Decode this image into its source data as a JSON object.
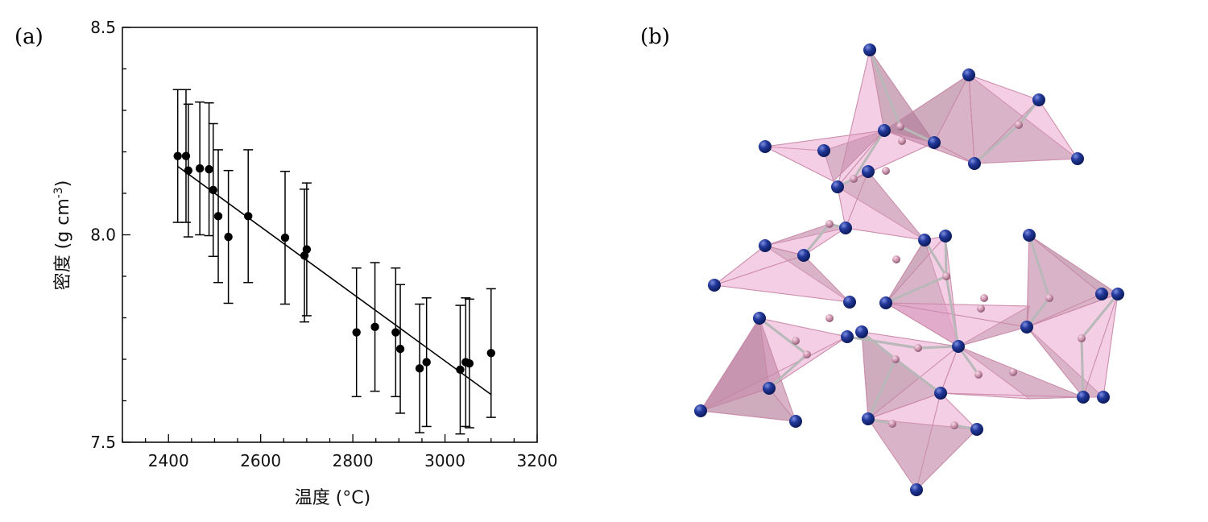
{
  "panels": {
    "a_label": "(a)",
    "b_label": "(b)"
  },
  "chart_data": {
    "type": "scatter",
    "xlabel": "温度 (°C)",
    "ylabel_main": "密度 (g cm",
    "ylabel_sup": "-3",
    "ylabel_close": ")",
    "xlim": [
      2300,
      3200
    ],
    "ylim": [
      7.5,
      8.5
    ],
    "xticks": [
      2400,
      2600,
      2800,
      3000,
      3200
    ],
    "xtick_labels": [
      "2400",
      "2600",
      "2800",
      "3000",
      "3200"
    ],
    "yticks": [
      7.5,
      8.0,
      8.5
    ],
    "ytick_labels": [
      "7.5",
      "8.0",
      "8.5"
    ],
    "grid": false,
    "series": [
      {
        "points": [
          {
            "x": 2420,
            "y": 8.19,
            "err": 0.16
          },
          {
            "x": 2438,
            "y": 8.19,
            "err": 0.16
          },
          {
            "x": 2443,
            "y": 8.155,
            "err": 0.16
          },
          {
            "x": 2468,
            "y": 8.16,
            "err": 0.16
          },
          {
            "x": 2488,
            "y": 8.158,
            "err": 0.16
          },
          {
            "x": 2497,
            "y": 8.108,
            "err": 0.16
          },
          {
            "x": 2508,
            "y": 8.045,
            "err": 0.16
          },
          {
            "x": 2530,
            "y": 7.995,
            "err": 0.16
          },
          {
            "x": 2573,
            "y": 8.045,
            "err": 0.16
          },
          {
            "x": 2653,
            "y": 7.993,
            "err": 0.16
          },
          {
            "x": 2695,
            "y": 7.95,
            "err": 0.16
          },
          {
            "x": 2700,
            "y": 7.965,
            "err": 0.16
          },
          {
            "x": 2808,
            "y": 7.765,
            "err": 0.155
          },
          {
            "x": 2848,
            "y": 7.778,
            "err": 0.155
          },
          {
            "x": 2893,
            "y": 7.765,
            "err": 0.155
          },
          {
            "x": 2903,
            "y": 7.725,
            "err": 0.155
          },
          {
            "x": 2945,
            "y": 7.678,
            "err": 0.155
          },
          {
            "x": 2960,
            "y": 7.693,
            "err": 0.155
          },
          {
            "x": 3033,
            "y": 7.675,
            "err": 0.155
          },
          {
            "x": 3045,
            "y": 7.693,
            "err": 0.155
          },
          {
            "x": 3053,
            "y": 7.69,
            "err": 0.155
          },
          {
            "x": 3100,
            "y": 7.715,
            "err": 0.155
          }
        ]
      }
    ],
    "fit_line": {
      "x": [
        2420,
        3100
      ],
      "y": [
        8.165,
        7.615
      ]
    }
  },
  "structure": {
    "colors": {
      "face": "#e8a6cc",
      "face_dark": "#9c6a83",
      "edge": "#c98aa8",
      "bond": "#b8b8b8",
      "anion": "#1a2f8c",
      "cation": "#d7a3bd"
    },
    "tetrahedra": [
      {
        "c": [
          1118,
          157
        ],
        "v": [
          [
            1080,
            62
          ],
          [
            1040,
            232
          ],
          [
            1160,
            177
          ],
          [
            1098,
            162
          ]
        ]
      },
      {
        "c": [
          1000,
          262
        ],
        "v": [
          [
            1023,
            187
          ],
          [
            950,
            182
          ],
          [
            1035,
            225
          ],
          [
            1098,
            162
          ]
        ]
      },
      {
        "c": [
          1120,
          175
        ],
        "v": [
          [
            1203,
            93
          ],
          [
            1160,
            177
          ],
          [
            1098,
            162
          ],
          [
            1210,
            203
          ]
        ]
      },
      {
        "c": [
          1260,
          155
        ],
        "v": [
          [
            1203,
            93
          ],
          [
            1290,
            124
          ],
          [
            1338,
            197
          ],
          [
            1210,
            203
          ]
        ]
      },
      {
        "c": [
          1088,
          262
        ],
        "v": [
          [
            1040,
            232
          ],
          [
            1050,
            283
          ],
          [
            1148,
            298
          ],
          [
            1078,
            213
          ]
        ]
      },
      {
        "c": [
          1000,
          300
        ],
        "v": [
          [
            950,
            305
          ],
          [
            998,
            317
          ],
          [
            1050,
            283
          ],
          [
            1030,
            278
          ]
        ]
      },
      {
        "c": [
          970,
          345
        ],
        "v": [
          [
            950,
            305
          ],
          [
            887,
            354
          ],
          [
            1055,
            375
          ],
          [
            998,
            317
          ]
        ]
      },
      {
        "c": [
          1160,
          330
        ],
        "v": [
          [
            1148,
            298
          ],
          [
            1174,
            293
          ],
          [
            1100,
            376
          ],
          [
            1190,
            430
          ]
        ]
      },
      {
        "c": [
          1320,
          355
        ],
        "v": [
          [
            1278,
            292
          ],
          [
            1368,
            365
          ],
          [
            1388,
            365
          ],
          [
            1275,
            406
          ]
        ]
      },
      {
        "c": [
          1350,
          420
        ],
        "v": [
          [
            1275,
            406
          ],
          [
            1388,
            365
          ],
          [
            1370,
            493
          ],
          [
            1345,
            493
          ]
        ]
      },
      {
        "c": [
          960,
          445
        ],
        "v": [
          [
            943,
            395
          ],
          [
            1052,
            418
          ],
          [
            870,
            510
          ],
          [
            955,
            482
          ]
        ]
      },
      {
        "c": [
          940,
          480
        ],
        "v": [
          [
            870,
            510
          ],
          [
            955,
            482
          ],
          [
            988,
            523
          ],
          [
            943,
            395
          ]
        ]
      },
      {
        "c": [
          1115,
          460
        ],
        "v": [
          [
            1070,
            412
          ],
          [
            1190,
            430
          ],
          [
            1078,
            520
          ],
          [
            1168,
            488
          ]
        ]
      },
      {
        "c": [
          1220,
          430
        ],
        "v": [
          [
            1190,
            430
          ],
          [
            1100,
            376
          ],
          [
            1278,
            380
          ],
          [
            1275,
            406
          ]
        ]
      },
      {
        "c": [
          1240,
          480
        ],
        "v": [
          [
            1190,
            430
          ],
          [
            1168,
            488
          ],
          [
            1278,
            495
          ],
          [
            1345,
            493
          ]
        ]
      },
      {
        "c": [
          1130,
          545
        ],
        "v": [
          [
            1078,
            520
          ],
          [
            1168,
            488
          ],
          [
            1213,
            533
          ],
          [
            1138,
            608
          ]
        ]
      }
    ],
    "anions": [
      [
        1080,
        62
      ],
      [
        1203,
        93
      ],
      [
        1290,
        124
      ],
      [
        950,
        182
      ],
      [
        1023,
        187
      ],
      [
        1098,
        162
      ],
      [
        1160,
        177
      ],
      [
        1210,
        203
      ],
      [
        1338,
        197
      ],
      [
        1040,
        232
      ],
      [
        1078,
        213
      ],
      [
        1050,
        283
      ],
      [
        1148,
        298
      ],
      [
        1174,
        293
      ],
      [
        950,
        305
      ],
      [
        998,
        317
      ],
      [
        887,
        354
      ],
      [
        1055,
        375
      ],
      [
        1100,
        376
      ],
      [
        1278,
        292
      ],
      [
        1368,
        365
      ],
      [
        1388,
        365
      ],
      [
        1275,
        406
      ],
      [
        943,
        395
      ],
      [
        1052,
        418
      ],
      [
        1070,
        412
      ],
      [
        1190,
        430
      ],
      [
        870,
        510
      ],
      [
        955,
        482
      ],
      [
        988,
        523
      ],
      [
        1078,
        520
      ],
      [
        1168,
        488
      ],
      [
        1213,
        533
      ],
      [
        1345,
        493
      ],
      [
        1370,
        493
      ],
      [
        1138,
        608
      ]
    ],
    "cations": [
      [
        1118,
        157
      ],
      [
        1060,
        222
      ],
      [
        1120,
        175
      ],
      [
        1265,
        155
      ],
      [
        1100,
        212
      ],
      [
        1030,
        278
      ],
      [
        1113,
        322
      ],
      [
        1175,
        343
      ],
      [
        1222,
        370
      ],
      [
        1303,
        370
      ],
      [
        1343,
        420
      ],
      [
        1002,
        440
      ],
      [
        988,
        423
      ],
      [
        1140,
        432
      ],
      [
        1112,
        446
      ],
      [
        1215,
        465
      ],
      [
        1258,
        462
      ],
      [
        1185,
        528
      ],
      [
        1218,
        383
      ],
      [
        1030,
        395
      ],
      [
        1108,
        526
      ]
    ],
    "bonds": [
      [
        [
          1118,
          157
        ],
        [
          1080,
          62
        ]
      ],
      [
        [
          1118,
          157
        ],
        [
          1160,
          177
        ]
      ],
      [
        [
          1060,
          222
        ],
        [
          1040,
          232
        ]
      ],
      [
        [
          1060,
          222
        ],
        [
          1098,
          162
        ]
      ],
      [
        [
          1265,
          155
        ],
        [
          1290,
          124
        ]
      ],
      [
        [
          1265,
          155
        ],
        [
          1210,
          203
        ]
      ],
      [
        [
          1030,
          278
        ],
        [
          998,
          317
        ]
      ],
      [
        [
          1030,
          278
        ],
        [
          1050,
          283
        ]
      ],
      [
        [
          1175,
          343
        ],
        [
          1148,
          298
        ]
      ],
      [
        [
          1175,
          343
        ],
        [
          1174,
          293
        ]
      ],
      [
        [
          1175,
          343
        ],
        [
          1190,
          430
        ]
      ],
      [
        [
          1175,
          343
        ],
        [
          1100,
          376
        ]
      ],
      [
        [
          1140,
          432
        ],
        [
          1052,
          418
        ]
      ],
      [
        [
          1140,
          432
        ],
        [
          1190,
          430
        ]
      ],
      [
        [
          1112,
          446
        ],
        [
          1078,
          520
        ]
      ],
      [
        [
          1112,
          446
        ],
        [
          1168,
          488
        ]
      ],
      [
        [
          1112,
          446
        ],
        [
          1070,
          412
        ]
      ],
      [
        [
          1215,
          465
        ],
        [
          1190,
          430
        ]
      ],
      [
        [
          1185,
          528
        ],
        [
          1213,
          533
        ]
      ],
      [
        [
          1108,
          526
        ],
        [
          1078,
          520
        ]
      ],
      [
        [
          1002,
          440
        ],
        [
          943,
          395
        ]
      ],
      [
        [
          1002,
          440
        ],
        [
          955,
          482
        ]
      ],
      [
        [
          1343,
          420
        ],
        [
          1345,
          493
        ]
      ],
      [
        [
          1343,
          420
        ],
        [
          1388,
          365
        ]
      ],
      [
        [
          1303,
          370
        ],
        [
          1278,
          292
        ]
      ],
      [
        [
          1303,
          370
        ],
        [
          1275,
          406
        ]
      ]
    ]
  }
}
